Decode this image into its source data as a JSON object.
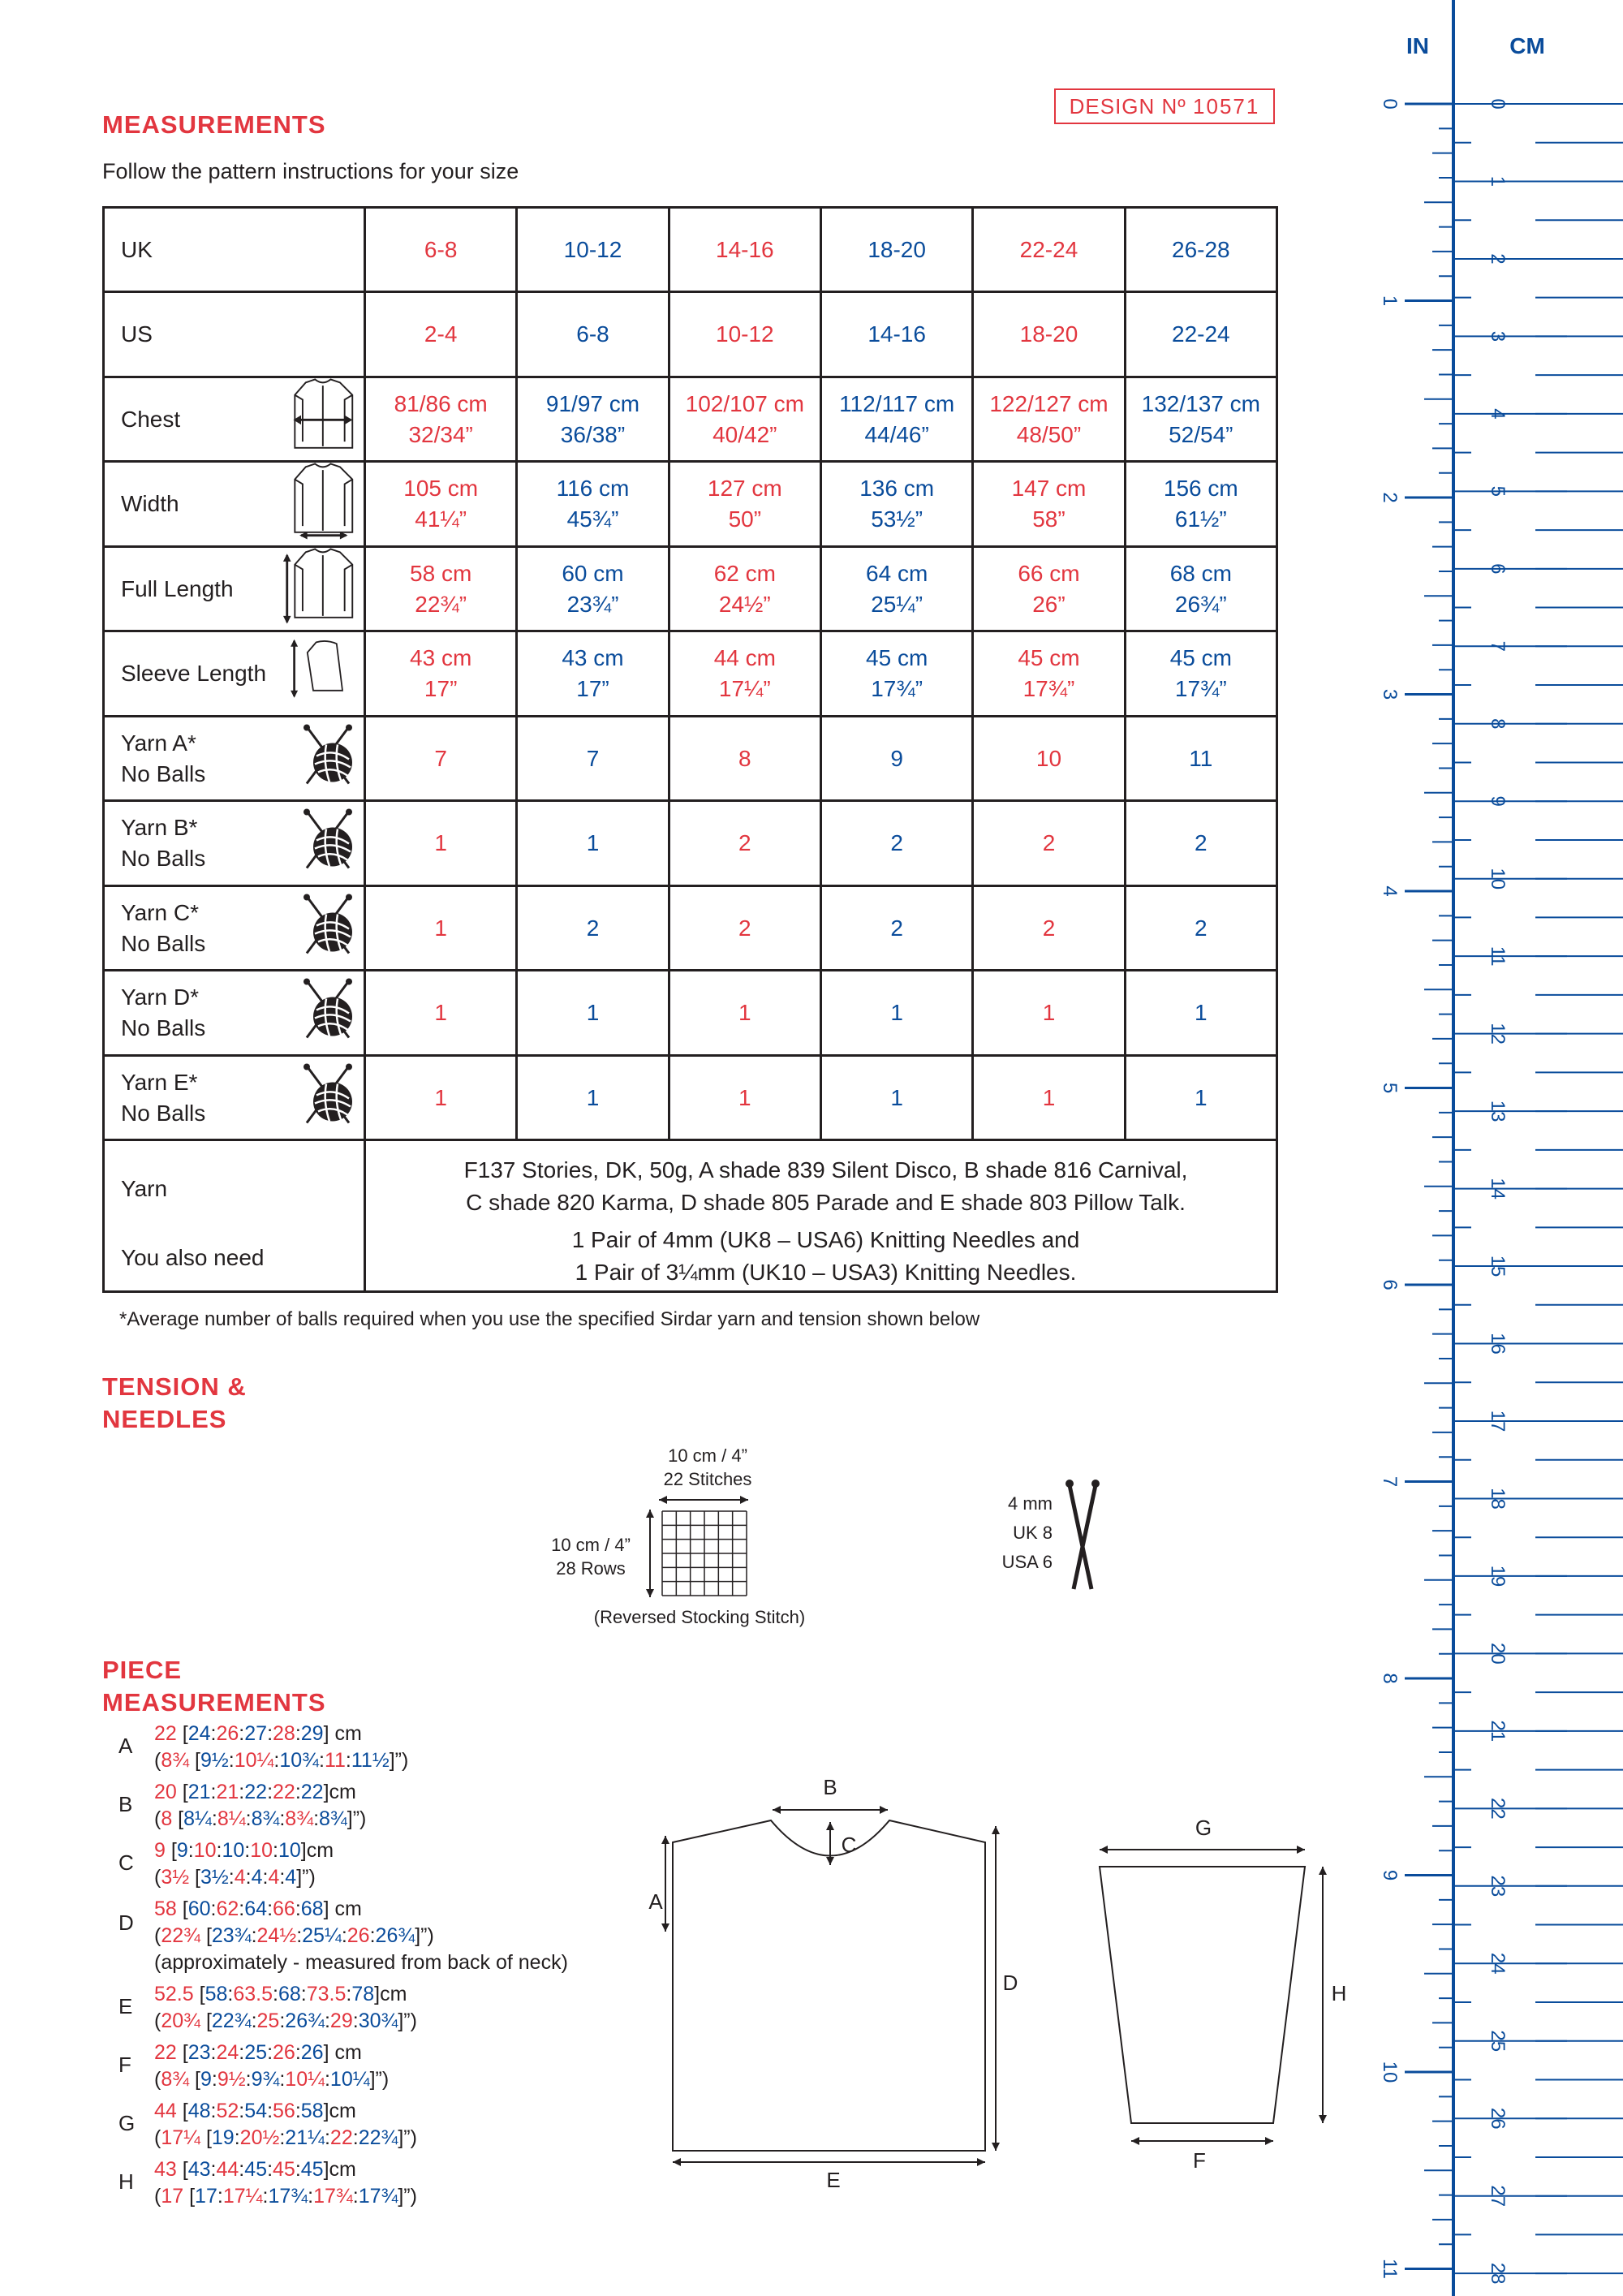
{
  "headings": {
    "measurements": "MEASUREMENTS",
    "tension_line1": "TENSION &",
    "tension_line2": "NEEDLES",
    "piece_line1": "PIECE",
    "piece_line2": "MEASUREMENTS"
  },
  "design": {
    "label": "DESIGN Nº",
    "number": "10571"
  },
  "intro": "Follow the pattern instructions for your size",
  "table": {
    "rows": [
      {
        "label": "UK",
        "values": [
          "6-8",
          "10-12",
          "14-16",
          "18-20",
          "22-24",
          "26-28"
        ]
      },
      {
        "label": "US",
        "values": [
          "2-4",
          "6-8",
          "10-12",
          "14-16",
          "18-20",
          "22-24"
        ]
      },
      {
        "label": "Chest",
        "icon": "chest-measure-icon",
        "values": [
          [
            "81/86 cm",
            "32/34”"
          ],
          [
            "91/97 cm",
            "36/38”"
          ],
          [
            "102/107 cm",
            "40/42”"
          ],
          [
            "112/117 cm",
            "44/46”"
          ],
          [
            "122/127 cm",
            "48/50”"
          ],
          [
            "132/137 cm",
            "52/54”"
          ]
        ]
      },
      {
        "label": "Width",
        "icon": "width-measure-icon",
        "values": [
          [
            "105 cm",
            "41¼”"
          ],
          [
            "116 cm",
            "45¾”"
          ],
          [
            "127 cm",
            "50”"
          ],
          [
            "136 cm",
            "53½”"
          ],
          [
            "147 cm",
            "58”"
          ],
          [
            "156 cm",
            "61½”"
          ]
        ]
      },
      {
        "label": "Full Length",
        "icon": "length-measure-icon",
        "values": [
          [
            "58 cm",
            "22¾”"
          ],
          [
            "60 cm",
            "23¾”"
          ],
          [
            "62 cm",
            "24½”"
          ],
          [
            "64 cm",
            "25¼”"
          ],
          [
            "66 cm",
            "26”"
          ],
          [
            "68 cm",
            "26¾”"
          ]
        ]
      },
      {
        "label": "Sleeve Length",
        "icon": "sleeve-measure-icon",
        "values": [
          [
            "43 cm",
            "17”"
          ],
          [
            "43 cm",
            "17”"
          ],
          [
            "44 cm",
            "17¼”"
          ],
          [
            "45 cm",
            "17¾”"
          ],
          [
            "45 cm",
            "17¾”"
          ],
          [
            "45 cm",
            "17¾”"
          ]
        ]
      },
      {
        "label": "Yarn A*",
        "sublabel": "No Balls",
        "icon": "yarn-ball-icon",
        "values": [
          "7",
          "7",
          "8",
          "9",
          "10",
          "11"
        ]
      },
      {
        "label": "Yarn B*",
        "sublabel": "No Balls",
        "icon": "yarn-ball-icon",
        "values": [
          "1",
          "1",
          "2",
          "2",
          "2",
          "2"
        ]
      },
      {
        "label": "Yarn C*",
        "sublabel": "No Balls",
        "icon": "yarn-ball-icon",
        "values": [
          "1",
          "2",
          "2",
          "2",
          "2",
          "2"
        ]
      },
      {
        "label": "Yarn D*",
        "sublabel": "No Balls",
        "icon": "yarn-ball-icon",
        "values": [
          "1",
          "1",
          "1",
          "1",
          "1",
          "1"
        ]
      },
      {
        "label": "Yarn E*",
        "sublabel": "No Balls",
        "icon": "yarn-ball-icon",
        "values": [
          "1",
          "1",
          "1",
          "1",
          "1",
          "1"
        ]
      }
    ],
    "yarn_label": "Yarn",
    "yarn_text_1": "F137 Stories, DK, 50g,  A shade 839 Silent Disco, B shade 816 Carnival,",
    "yarn_text_2": "C shade 820 Karma, D shade 805 Parade and E shade 803 Pillow Talk.",
    "need_label": "You also need",
    "need_text_1": "1 Pair of 4mm (UK8 – USA6) Knitting Needles and",
    "need_text_2": "1 Pair of 3¼mm (UK10 – USA3) Knitting Needles."
  },
  "footnote": "*Average number of balls required when you use the specified Sirdar yarn and tension shown below",
  "tension": {
    "width_label": "10 cm / 4”",
    "stitches": "22 Stitches",
    "height_label": "10 cm / 4”",
    "rows": "28 Rows",
    "stitch_type": "(Reversed Stocking Stitch)",
    "needle_mm": "4 mm",
    "needle_uk": "UK 8",
    "needle_usa": "USA 6"
  },
  "pieces": [
    {
      "letter": "A",
      "cm": {
        "first": "22",
        "rest": [
          "24",
          "26",
          "27",
          "28",
          "29"
        ],
        "unit": " cm"
      },
      "in": {
        "first": "8¾",
        "rest": [
          "9½",
          "10¼",
          "10¾",
          "11",
          "11½"
        ]
      }
    },
    {
      "letter": "B",
      "cm": {
        "first": "20",
        "rest": [
          "21",
          "21",
          "22",
          "22",
          "22"
        ],
        "unit": "cm"
      },
      "in": {
        "first": "8",
        "rest": [
          "8¼",
          "8¼",
          "8¾",
          "8¾",
          "8¾"
        ]
      }
    },
    {
      "letter": "C",
      "cm": {
        "first": "9",
        "rest": [
          "9",
          "10",
          "10",
          "10",
          "10"
        ],
        "unit": "cm"
      },
      "in": {
        "first": "3½",
        "rest": [
          "3½",
          "4",
          "4",
          "4",
          "4"
        ]
      }
    },
    {
      "letter": "D",
      "cm": {
        "first": "58",
        "rest": [
          "60",
          "62",
          "64",
          "66",
          "68"
        ],
        "unit": " cm"
      },
      "in": {
        "first": "22¾",
        "rest": [
          "23¾",
          "24½",
          "25¼",
          "26",
          "26¾"
        ]
      },
      "note": "(approximately - measured from back of neck)"
    },
    {
      "letter": "E",
      "cm": {
        "first": "52.5",
        "rest": [
          "58",
          "63.5",
          "68",
          "73.5",
          "78"
        ],
        "unit": "cm"
      },
      "in": {
        "first": "20¾",
        "rest": [
          "22¾",
          "25",
          "26¾",
          "29",
          "30¾"
        ]
      }
    },
    {
      "letter": "F",
      "cm": {
        "first": "22",
        "rest": [
          "23",
          "24",
          "25",
          "26",
          "26"
        ],
        "unit": " cm"
      },
      "in": {
        "first": "8¾",
        "rest": [
          "9",
          "9½",
          "9¾",
          "10¼",
          "10¼"
        ]
      }
    },
    {
      "letter": "G",
      "cm": {
        "first": "44",
        "rest": [
          "48",
          "52",
          "54",
          "56",
          "58"
        ],
        "unit": "cm"
      },
      "in": {
        "first": "17¼",
        "rest": [
          "19",
          "20½",
          "21¼",
          "22",
          "22¾"
        ]
      }
    },
    {
      "letter": "H",
      "cm": {
        "first": "43",
        "rest": [
          "43",
          "44",
          "45",
          "45",
          "45"
        ],
        "unit": "cm"
      },
      "in": {
        "first": "17",
        "rest": [
          "17",
          "17¼",
          "17¾",
          "17¾",
          "17¾"
        ]
      }
    }
  ],
  "diagram_labels": {
    "A": "A",
    "B": "B",
    "C": "C",
    "D": "D",
    "E": "E",
    "F": "F",
    "G": "G",
    "H": "H"
  },
  "ruler": {
    "in_label": "IN",
    "cm_label": "CM",
    "inch_numbers": [
      "0",
      "1",
      "2",
      "3",
      "4",
      "5",
      "6",
      "7",
      "8",
      "9",
      "10",
      "11"
    ],
    "cm_numbers": [
      "0",
      "1",
      "2",
      "3",
      "4",
      "5",
      "6",
      "7",
      "8",
      "9",
      "10",
      "11",
      "12",
      "13",
      "14",
      "15",
      "16",
      "17",
      "18",
      "19",
      "20",
      "21",
      "22",
      "23",
      "24",
      "25",
      "26",
      "27",
      "28"
    ]
  },
  "colors": {
    "red": "#e2363f",
    "blue": "#0a4c9b",
    "ink": "#231f20"
  }
}
